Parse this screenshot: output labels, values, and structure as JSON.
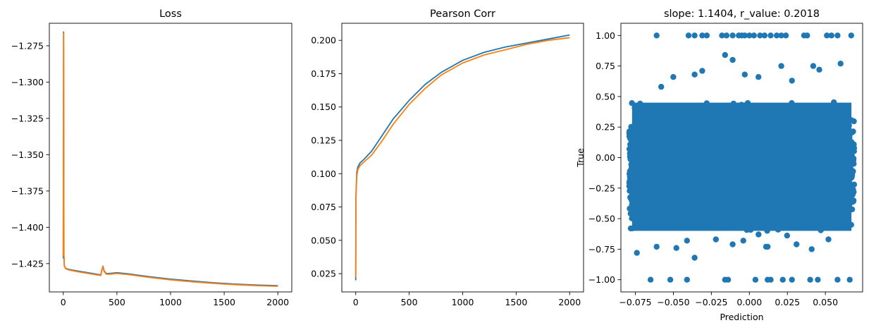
{
  "colors": {
    "blue": "#1f77b4",
    "orange": "#ff7f0e"
  },
  "chart_data": [
    {
      "type": "line",
      "title": "Loss",
      "xlabel": "",
      "ylabel": "",
      "xlim": [
        -130,
        2130
      ],
      "ylim": [
        -1.4445,
        -1.2595
      ],
      "xticks": [
        0,
        500,
        1000,
        1500,
        2000
      ],
      "xtick_labels": [
        "0",
        "500",
        "1000",
        "1500",
        "2000"
      ],
      "yticks": [
        -1.425,
        -1.4,
        -1.375,
        -1.35,
        -1.325,
        -1.3,
        -1.275
      ],
      "ytick_labels": [
        "−1.425",
        "−1.400",
        "−1.375",
        "−1.350",
        "−1.325",
        "−1.300",
        "−1.275"
      ],
      "grid": false,
      "series": [
        {
          "color": "#1f77b4",
          "x": [
            0,
            3,
            6,
            10,
            20,
            40,
            80,
            150,
            250,
            350,
            360,
            370,
            380,
            400,
            430,
            500,
            600,
            800,
            1000,
            1200,
            1400,
            1600,
            1800,
            2000
          ],
          "y": [
            -1.4215,
            -1.2655,
            -1.4195,
            -1.4265,
            -1.428,
            -1.4288,
            -1.4294,
            -1.4303,
            -1.4315,
            -1.4328,
            -1.4292,
            -1.4268,
            -1.4298,
            -1.4318,
            -1.4318,
            -1.4313,
            -1.432,
            -1.434,
            -1.4357,
            -1.437,
            -1.4382,
            -1.4391,
            -1.4398,
            -1.4402
          ]
        },
        {
          "color": "#ff7f0e",
          "x": [
            0,
            3,
            6,
            10,
            20,
            40,
            80,
            150,
            250,
            350,
            360,
            370,
            380,
            400,
            430,
            500,
            600,
            800,
            1000,
            1200,
            1400,
            1600,
            1800,
            2000
          ],
          "y": [
            -1.4195,
            -1.2665,
            -1.4185,
            -1.4268,
            -1.4283,
            -1.4291,
            -1.4298,
            -1.4308,
            -1.432,
            -1.4332,
            -1.4296,
            -1.4272,
            -1.4302,
            -1.4322,
            -1.4323,
            -1.4318,
            -1.4325,
            -1.4345,
            -1.4362,
            -1.4375,
            -1.4386,
            -1.4395,
            -1.4402,
            -1.4406
          ]
        }
      ]
    },
    {
      "type": "line",
      "title": "Pearson Corr",
      "xlabel": "",
      "ylabel": "",
      "xlim": [
        -130,
        2130
      ],
      "ylim": [
        0.0113,
        0.2128
      ],
      "xticks": [
        0,
        500,
        1000,
        1500,
        2000
      ],
      "xtick_labels": [
        "0",
        "500",
        "1000",
        "1500",
        "2000"
      ],
      "yticks": [
        0.025,
        0.05,
        0.075,
        0.1,
        0.125,
        0.15,
        0.175,
        0.2
      ],
      "ytick_labels": [
        "0.025",
        "0.050",
        "0.075",
        "0.100",
        "0.125",
        "0.150",
        "0.175",
        "0.200"
      ],
      "grid": false,
      "series": [
        {
          "color": "#1f77b4",
          "x": [
            0,
            2,
            5,
            10,
            20,
            40,
            80,
            150,
            250,
            350,
            500,
            650,
            800,
            1000,
            1200,
            1400,
            1600,
            1800,
            2000
          ],
          "y": [
            0.02,
            0.083,
            0.09,
            0.101,
            0.105,
            0.108,
            0.111,
            0.117,
            0.129,
            0.141,
            0.155,
            0.167,
            0.176,
            0.185,
            0.191,
            0.195,
            0.198,
            0.201,
            0.204
          ]
        },
        {
          "color": "#ff7f0e",
          "x": [
            0,
            2,
            5,
            10,
            20,
            40,
            80,
            150,
            250,
            350,
            500,
            650,
            800,
            1000,
            1200,
            1400,
            1600,
            1800,
            2000
          ],
          "y": [
            0.022,
            0.08,
            0.088,
            0.098,
            0.103,
            0.106,
            0.109,
            0.114,
            0.125,
            0.137,
            0.152,
            0.164,
            0.174,
            0.183,
            0.189,
            0.193,
            0.197,
            0.2,
            0.202
          ]
        }
      ]
    },
    {
      "type": "scatter",
      "title": "slope: 1.1404, r_value: 0.2018",
      "xlabel": "Prediction",
      "ylabel": "True",
      "xlim": [
        -0.0845,
        0.0745
      ],
      "ylim": [
        -1.1,
        1.1
      ],
      "xticks": [
        -0.075,
        -0.05,
        -0.025,
        0,
        0.025,
        0.05
      ],
      "xtick_labels": [
        "−0.075",
        "−0.050",
        "−0.025",
        "0.000",
        "0.025",
        "0.050"
      ],
      "yticks": [
        -1,
        -0.75,
        -0.5,
        -0.25,
        0,
        0.25,
        0.5,
        0.75,
        1
      ],
      "ytick_labels": [
        "−1.00",
        "−0.75",
        "−0.50",
        "−0.25",
        "0.00",
        "0.25",
        "0.50",
        "0.75",
        "1.00"
      ],
      "grid": false,
      "color": "#1f77b4",
      "dense_region": {
        "x": [
          -0.079,
          0.069
        ],
        "y": [
          -0.6,
          0.45
        ]
      },
      "points": [
        [
          -0.061,
          1.0
        ],
        [
          -0.04,
          1.0
        ],
        [
          -0.036,
          1.0
        ],
        [
          -0.031,
          1.0
        ],
        [
          -0.028,
          1.0
        ],
        [
          -0.018,
          1.0
        ],
        [
          -0.015,
          1.0
        ],
        [
          -0.011,
          1.0
        ],
        [
          -0.007,
          1.0
        ],
        [
          -0.005,
          1.0
        ],
        [
          -0.003,
          1.0
        ],
        [
          0.0,
          1.0
        ],
        [
          0.003,
          1.0
        ],
        [
          0.007,
          1.0
        ],
        [
          0.01,
          1.0
        ],
        [
          0.014,
          1.0
        ],
        [
          0.018,
          1.0
        ],
        [
          0.021,
          1.0
        ],
        [
          0.024,
          1.0
        ],
        [
          0.036,
          1.0
        ],
        [
          0.038,
          1.0
        ],
        [
          0.051,
          1.0
        ],
        [
          0.054,
          1.0
        ],
        [
          0.058,
          1.0
        ],
        [
          0.067,
          1.0
        ],
        [
          -0.065,
          -1.0
        ],
        [
          -0.052,
          -1.0
        ],
        [
          -0.041,
          -1.0
        ],
        [
          -0.016,
          -1.0
        ],
        [
          -0.014,
          -1.0
        ],
        [
          0.004,
          -1.0
        ],
        [
          0.012,
          -1.0
        ],
        [
          0.014,
          -1.0
        ],
        [
          0.022,
          -1.0
        ],
        [
          0.028,
          -1.0
        ],
        [
          0.04,
          -1.0
        ],
        [
          0.045,
          -1.0
        ],
        [
          0.058,
          -1.0
        ],
        [
          0.066,
          -1.0
        ],
        [
          -0.016,
          0.84
        ],
        [
          -0.011,
          0.8
        ],
        [
          0.021,
          0.75
        ],
        [
          0.042,
          0.75
        ],
        [
          0.06,
          0.77
        ],
        [
          -0.031,
          0.71
        ],
        [
          -0.058,
          0.58
        ],
        [
          -0.05,
          0.66
        ],
        [
          -0.036,
          0.68
        ],
        [
          -0.003,
          0.68
        ],
        [
          0.006,
          0.66
        ],
        [
          0.028,
          0.63
        ],
        [
          0.046,
          0.72
        ],
        [
          -0.074,
          -0.78
        ],
        [
          -0.061,
          -0.73
        ],
        [
          -0.048,
          -0.74
        ],
        [
          -0.036,
          -0.82
        ],
        [
          -0.041,
          -0.68
        ],
        [
          -0.022,
          -0.67
        ],
        [
          0.011,
          -0.73
        ],
        [
          0.012,
          -0.73
        ],
        [
          0.031,
          -0.71
        ],
        [
          0.041,
          -0.75
        ],
        [
          0.052,
          -0.67
        ],
        [
          -0.078,
          -0.58
        ],
        [
          0.067,
          -0.55
        ],
        [
          -0.004,
          -0.68
        ],
        [
          -0.011,
          -0.71
        ]
      ]
    }
  ]
}
